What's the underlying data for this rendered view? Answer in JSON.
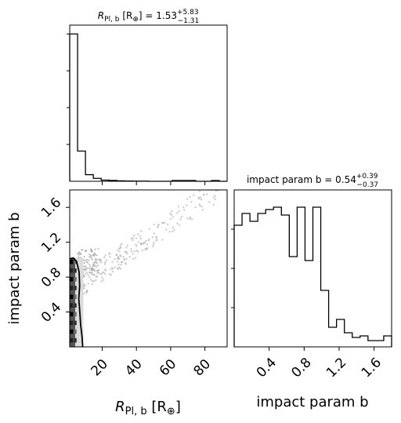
{
  "chart_data": [
    {
      "panel": "hist-radius",
      "type": "histogram",
      "title_var": "R",
      "title_sub": "Pl, b",
      "title_unit_open": " [R",
      "title_unit_sub": "⊕",
      "title_unit_close": "] = ",
      "title_value": "1.53",
      "title_err_plus": "+5.83",
      "title_err_minus": "−1.31",
      "xlim": [
        1,
        93
      ],
      "bins": [
        1,
        5.6,
        10.2,
        14.8,
        19.4,
        24.0,
        28.6,
        33.2,
        37.8,
        42.4,
        47.0,
        51.6,
        56.2,
        60.8,
        65.4,
        70.0,
        74.6,
        79.2,
        83.8,
        88.4,
        93.0
      ],
      "counts": [
        1000,
        205,
        45,
        20,
        8,
        6,
        3,
        2,
        1,
        1,
        0,
        0,
        0,
        5,
        5,
        5,
        0,
        0,
        5,
        0
      ]
    },
    {
      "panel": "hist-impact",
      "type": "histogram",
      "title_prefix": "impact param b = ",
      "title_value": "0.54",
      "title_err_plus": "+0.39",
      "title_err_minus": "−0.37",
      "xlim": [
        0.0,
        1.8
      ],
      "bins": [
        0.0,
        0.09,
        0.18,
        0.27,
        0.36,
        0.45,
        0.54,
        0.63,
        0.72,
        0.81,
        0.9,
        0.99,
        1.08,
        1.17,
        1.26,
        1.35,
        1.44,
        1.53,
        1.62,
        1.71,
        1.8
      ],
      "counts": [
        155,
        170,
        160,
        170,
        175,
        178,
        168,
        115,
        178,
        110,
        178,
        72,
        25,
        35,
        18,
        12,
        14,
        8,
        8,
        14
      ]
    },
    {
      "panel": "scatter-2d",
      "type": "scatter",
      "xlabel_var": "R",
      "xlabel_sub": "Pl, b",
      "xlabel_unit_open": " [R",
      "xlabel_unit_sub": "⊕",
      "xlabel_unit_close": "]",
      "ylabel": "impact param b",
      "xlim": [
        1,
        93
      ],
      "ylim": [
        0.0,
        1.8
      ],
      "xticks": [
        20,
        40,
        60,
        80
      ],
      "yticks": [
        0.4,
        0.8,
        1.2,
        1.6
      ],
      "xtick_labels": [
        "20",
        "40",
        "60",
        "80"
      ],
      "ytick_labels": [
        "0.4",
        "0.8",
        "1.2",
        "1.6"
      ],
      "grid": false
    },
    {
      "panel": "impact-x-axis",
      "type": "axis",
      "xlabel": "impact param b",
      "xticks": [
        0.4,
        0.8,
        1.2,
        1.6
      ],
      "xtick_labels": [
        "0.4",
        "0.8",
        "1.2",
        "1.6"
      ]
    }
  ]
}
